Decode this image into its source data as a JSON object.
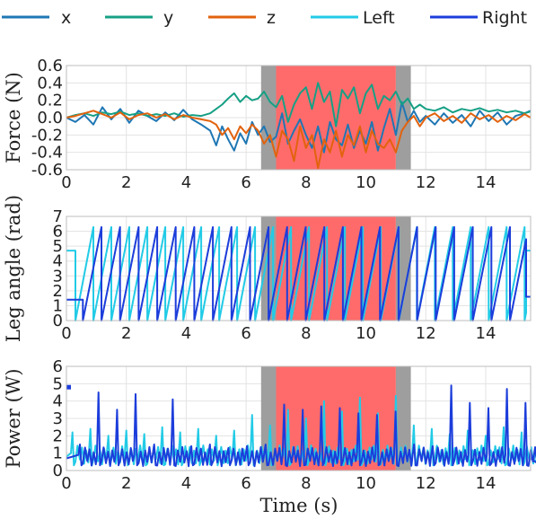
{
  "colors": {
    "x": "#1f77b4",
    "y": "#16a085",
    "z": "#e2620d",
    "left": "#22cbe6",
    "right": "#1c3ddb",
    "transition": "#9e9e9e",
    "active": "#ff6b6b"
  },
  "legend": [
    {
      "key": "x",
      "label": "x"
    },
    {
      "key": "y",
      "label": "y"
    },
    {
      "key": "z",
      "label": "z"
    },
    {
      "key": "left",
      "label": "Left"
    },
    {
      "key": "right",
      "label": "Right"
    }
  ],
  "chart_data": [
    {
      "type": "line",
      "ylabel": "Force (N)",
      "xlim": [
        0,
        15.5
      ],
      "ylim": [
        -0.6,
        0.6
      ],
      "yticks": [
        -0.6,
        -0.4,
        -0.2,
        0.0,
        0.2,
        0.4,
        0.6
      ],
      "ytick_labels": [
        "-0.6",
        "-0.4",
        "-0.2",
        "0.0",
        "0.2",
        "0.4",
        "0.6"
      ],
      "xticks": [
        0,
        2,
        4,
        6,
        8,
        10,
        12,
        14
      ],
      "xtick_labels": [
        "0",
        "2",
        "4",
        "6",
        "8",
        "10",
        "12",
        "14"
      ],
      "shaded_regions": [
        {
          "from": 6.5,
          "to": 7.0,
          "kind": "transition"
        },
        {
          "from": 7.0,
          "to": 11.0,
          "kind": "active"
        },
        {
          "from": 11.0,
          "to": 11.5,
          "kind": "transition"
        }
      ],
      "series": [
        {
          "name": "x",
          "color_key": "x",
          "x": [
            0,
            0.3,
            0.6,
            0.9,
            1.2,
            1.5,
            1.8,
            2.1,
            2.4,
            2.7,
            3.0,
            3.3,
            3.6,
            3.9,
            4.2,
            4.5,
            4.8,
            5.0,
            5.2,
            5.4,
            5.6,
            5.8,
            6.0,
            6.2,
            6.4,
            6.6,
            6.8,
            7.0,
            7.2,
            7.4,
            7.6,
            7.8,
            8.0,
            8.2,
            8.4,
            8.6,
            8.8,
            9.0,
            9.2,
            9.4,
            9.6,
            9.8,
            10.0,
            10.2,
            10.4,
            10.6,
            10.8,
            11.0,
            11.2,
            11.4,
            11.6,
            11.8,
            12.0,
            12.3,
            12.6,
            12.9,
            13.2,
            13.5,
            13.8,
            14.1,
            14.4,
            14.7,
            15.0,
            15.3,
            15.5
          ],
          "y": [
            0,
            -0.05,
            0.03,
            -0.08,
            0.12,
            -0.02,
            0.1,
            -0.06,
            0.08,
            0.02,
            -0.04,
            0.06,
            -0.03,
            0.09,
            -0.02,
            -0.08,
            -0.15,
            -0.32,
            -0.1,
            -0.25,
            -0.38,
            -0.18,
            -0.3,
            -0.05,
            -0.2,
            -0.1,
            -0.28,
            -0.22,
            0.05,
            -0.3,
            -0.15,
            -0.02,
            -0.2,
            -0.35,
            -0.1,
            -0.4,
            -0.05,
            -0.25,
            -0.32,
            -0.08,
            -0.35,
            -0.15,
            -0.3,
            -0.05,
            -0.38,
            -0.12,
            0.1,
            -0.2,
            0.18,
            -0.05,
            0.08,
            -0.05,
            0.02,
            -0.08,
            0.05,
            -0.06,
            0.03,
            -0.1,
            0.08,
            -0.04,
            0.06,
            -0.08,
            0.02,
            0.05,
            0.08
          ]
        },
        {
          "name": "y",
          "color_key": "y",
          "x": [
            0,
            0.3,
            0.6,
            0.9,
            1.2,
            1.5,
            1.8,
            2.1,
            2.4,
            2.7,
            3.0,
            3.3,
            3.6,
            3.9,
            4.2,
            4.5,
            4.8,
            5.0,
            5.2,
            5.4,
            5.6,
            5.8,
            6.0,
            6.2,
            6.4,
            6.6,
            6.8,
            7.0,
            7.2,
            7.4,
            7.6,
            7.8,
            8.0,
            8.2,
            8.4,
            8.6,
            8.8,
            9.0,
            9.2,
            9.4,
            9.6,
            9.8,
            10.0,
            10.2,
            10.4,
            10.6,
            10.8,
            11.0,
            11.2,
            11.4,
            11.6,
            11.8,
            12.0,
            12.3,
            12.6,
            12.9,
            13.2,
            13.5,
            13.8,
            14.1,
            14.4,
            14.7,
            15.0,
            15.3,
            15.5
          ],
          "y": [
            0,
            0.03,
            0.05,
            0.02,
            0.06,
            0.04,
            0.07,
            0.03,
            0.05,
            0.02,
            0.04,
            0.02,
            0.05,
            0.01,
            0.03,
            0.02,
            0.05,
            0.1,
            0.15,
            0.22,
            0.28,
            0.18,
            0.25,
            0.2,
            0.22,
            0.3,
            0.18,
            0.12,
            0.25,
            -0.05,
            0.15,
            0.28,
            0.35,
            0.1,
            0.4,
            0.18,
            0.3,
            -0.1,
            0.32,
            0.22,
            0.35,
            0.05,
            0.28,
            0.38,
            0.1,
            0.25,
            0.2,
            0.3,
            0.15,
            0.22,
            0.1,
            0.15,
            0.1,
            0.08,
            0.12,
            0.06,
            0.1,
            0.08,
            0.11,
            0.07,
            0.09,
            0.06,
            0.08,
            0.05,
            0.07
          ]
        },
        {
          "name": "z",
          "color_key": "z",
          "x": [
            0,
            0.3,
            0.6,
            0.9,
            1.2,
            1.5,
            1.8,
            2.1,
            2.4,
            2.7,
            3.0,
            3.3,
            3.6,
            3.9,
            4.2,
            4.5,
            4.8,
            5.0,
            5.2,
            5.4,
            5.6,
            5.8,
            6.0,
            6.2,
            6.4,
            6.6,
            6.8,
            7.0,
            7.2,
            7.4,
            7.6,
            7.8,
            8.0,
            8.2,
            8.4,
            8.6,
            8.8,
            9.0,
            9.2,
            9.4,
            9.6,
            9.8,
            10.0,
            10.2,
            10.4,
            10.6,
            10.8,
            11.0,
            11.2,
            11.4,
            11.6,
            11.8,
            12.0,
            12.3,
            12.6,
            12.9,
            13.2,
            13.5,
            13.8,
            14.1,
            14.4,
            14.7,
            15.0,
            15.3,
            15.5
          ],
          "y": [
            0,
            0.02,
            0.05,
            0.08,
            0.04,
            0.0,
            0.06,
            -0.02,
            0.03,
            0.05,
            0.0,
            0.04,
            -0.02,
            0.03,
            0.0,
            -0.02,
            -0.04,
            -0.08,
            -0.2,
            -0.12,
            -0.25,
            -0.1,
            -0.18,
            -0.08,
            -0.15,
            -0.3,
            -0.2,
            -0.45,
            -0.15,
            -0.25,
            -0.5,
            -0.1,
            -0.35,
            -0.2,
            -0.58,
            -0.25,
            -0.4,
            -0.15,
            -0.45,
            -0.2,
            -0.32,
            -0.1,
            -0.4,
            -0.15,
            -0.3,
            -0.35,
            -0.25,
            -0.4,
            -0.15,
            -0.05,
            0.02,
            -0.1,
            0.0,
            0.05,
            -0.04,
            0.02,
            -0.06,
            0.05,
            -0.02,
            0.03,
            -0.05,
            0.02,
            -0.03,
            0.04,
            0.0
          ]
        }
      ]
    },
    {
      "type": "line",
      "ylabel": "Leg angle (rad)",
      "xlim": [
        0,
        15.5
      ],
      "ylim": [
        0,
        7
      ],
      "yticks": [
        0,
        1,
        2,
        3,
        4,
        5,
        6,
        7
      ],
      "ytick_labels": [
        "0",
        "1",
        "2",
        "3",
        "4",
        "5",
        "6",
        "7"
      ],
      "xticks": [
        0,
        2,
        4,
        6,
        8,
        10,
        12,
        14
      ],
      "xtick_labels": [
        "0",
        "2",
        "4",
        "6",
        "8",
        "10",
        "12",
        "14"
      ],
      "shaded_regions": [
        {
          "from": 6.5,
          "to": 7.0,
          "kind": "transition"
        },
        {
          "from": 7.0,
          "to": 11.0,
          "kind": "active"
        },
        {
          "from": 11.0,
          "to": 11.5,
          "kind": "transition"
        }
      ],
      "series": [
        {
          "name": "Left",
          "color_key": "left",
          "sawtooth": {
            "start": 0.3,
            "period": 0.6,
            "first_value": 4.7,
            "last_value": 4.7,
            "max": 6.28
          }
        },
        {
          "name": "Right",
          "color_key": "right",
          "sawtooth": {
            "start": 0.55,
            "period": 0.62,
            "first_value": 1.4,
            "last_value": 1.6,
            "max": 6.28
          }
        }
      ]
    },
    {
      "type": "line",
      "ylabel": "Power (W)",
      "xlabel": "Time (s)",
      "xlim": [
        0,
        15.5
      ],
      "ylim": [
        0,
        6
      ],
      "yticks": [
        0,
        1,
        2,
        3,
        4,
        5,
        6
      ],
      "ytick_labels": [
        "0",
        "1",
        "2",
        "3",
        "4",
        "5",
        "6"
      ],
      "xticks": [
        0,
        2,
        4,
        6,
        8,
        10,
        12,
        14
      ],
      "xtick_labels": [
        "0",
        "2",
        "4",
        "6",
        "8",
        "10",
        "12",
        "14"
      ],
      "shaded_regions": [
        {
          "from": 6.5,
          "to": 7.0,
          "kind": "transition"
        },
        {
          "from": 7.0,
          "to": 11.0,
          "kind": "active"
        },
        {
          "from": 11.0,
          "to": 11.5,
          "kind": "transition"
        }
      ],
      "series": [
        {
          "name": "Left",
          "color_key": "left",
          "spikes": {
            "start": 0.2,
            "period": 0.6,
            "peaks": [
              2.2,
              2.4,
              2.0,
              2.3,
              2.1,
              2.5,
              2.2,
              2.4,
              2.0,
              2.3,
              3.2,
              2.6,
              3.5,
              3.0,
              4.0,
              3.4,
              4.2,
              3.3,
              4.3,
              2.6,
              2.4,
              2.1,
              2.3,
              2.0,
              2.5,
              2.2,
              2.4
            ],
            "base": 0.8
          }
        },
        {
          "name": "Right",
          "color_key": "right",
          "spikes": {
            "start": 0.45,
            "period": 0.62,
            "peaks": [
              1.5,
              4.5,
              3.5,
              4.4,
              1.5,
              4.1,
              1.4,
              1.5,
              1.3,
              1.4,
              1.5,
              3.8,
              3.5,
              3.7,
              3.6,
              3.3,
              3.2,
              3.4,
              1.5,
              1.4,
              4.9,
              3.9,
              3.6,
              4.7,
              3.9
            ],
            "base": 0.7
          }
        },
        {
          "name": "Right",
          "color_key": "right",
          "points": [
            [
              0.0,
              4.8
            ],
            [
              0.15,
              4.8
            ]
          ]
        }
      ]
    }
  ]
}
